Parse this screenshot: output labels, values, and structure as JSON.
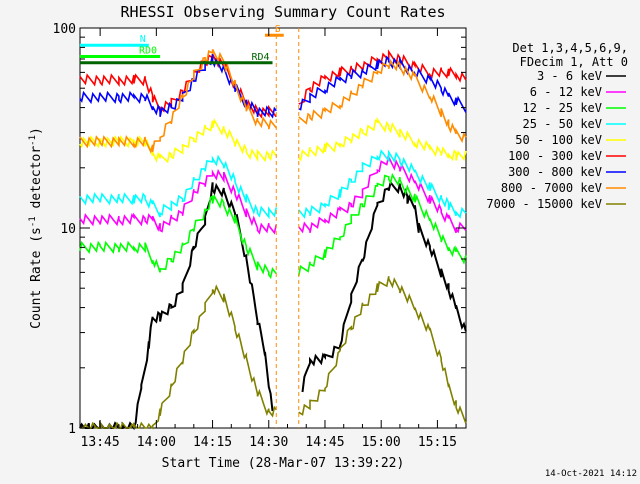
{
  "chart_data": {
    "type": "line",
    "title": "RHESSI Observing Summary Count Rates",
    "xlabel": "Start Time (28-Mar-07 13:39:22)",
    "ylabel_main": "Count Rate (s",
    "ylabel_sup1": "-1",
    "ylabel_mid": " detector",
    "ylabel_sup2": "-1",
    "ylabel_end": ")",
    "y_scale": "log",
    "ylim": [
      1,
      100
    ],
    "xlim_minutes": [
      -5.37,
      97.63
    ],
    "x_ticks": [
      {
        "label": "13:45",
        "minutes": 0
      },
      {
        "label": "14:00",
        "minutes": 15
      },
      {
        "label": "14:15",
        "minutes": 30
      },
      {
        "label": "14:30",
        "minutes": 45
      },
      {
        "label": "14:45",
        "minutes": 60
      },
      {
        "label": "15:00",
        "minutes": 75
      },
      {
        "label": "15:15",
        "minutes": 90
      }
    ],
    "y_ticks": [
      {
        "label": "1",
        "value": 1
      },
      {
        "label": "10",
        "value": 10
      },
      {
        "label": "100",
        "value": 100
      }
    ],
    "legend_header": [
      "Det 1,3,4,5,6,9,",
      "FDecim 1, Att 0"
    ],
    "legend_placement": "right",
    "grid": false,
    "gaps_minutes": [
      [
        47,
        53
      ]
    ],
    "series": [
      {
        "name": "3 - 6 keV",
        "color": "#000000",
        "values_minutes": [
          -5.4,
          -3,
          0,
          3,
          6,
          9,
          11,
          13,
          14,
          16,
          19,
          22,
          25,
          28,
          30,
          33,
          36,
          39,
          42,
          44,
          46,
          54,
          56,
          60,
          64,
          67,
          70,
          74,
          77,
          80,
          82,
          84,
          85,
          88,
          91,
          93,
          95,
          97.6
        ],
        "values": [
          1,
          1,
          1,
          1,
          1,
          1,
          1.6,
          2.6,
          3.5,
          3.6,
          4,
          5,
          8,
          11,
          16,
          15,
          12,
          7,
          3.5,
          2.4,
          1.2,
          1.6,
          2.2,
          2.2,
          2.6,
          4.5,
          7,
          13,
          16,
          16,
          14,
          13,
          10,
          8,
          6,
          5,
          4,
          3
        ]
      },
      {
        "name": "6 - 12 keV",
        "color": "#ff00ff",
        "values_minutes": [
          -5.4,
          0,
          5,
          9,
          12,
          14,
          16,
          19,
          22,
          25,
          28,
          30,
          33,
          36,
          39,
          42,
          45,
          47,
          53,
          56,
          60,
          64,
          67,
          70,
          74,
          77,
          80,
          84,
          88,
          91,
          93,
          95,
          97.6
        ],
        "values": [
          11,
          11,
          11,
          11,
          11,
          11,
          10,
          11,
          12,
          15,
          17,
          19,
          18,
          15,
          12,
          10,
          10,
          10,
          10,
          10,
          11,
          12,
          13,
          15,
          20,
          22,
          20,
          17,
          14,
          12,
          11,
          10,
          10
        ]
      },
      {
        "name": "12 - 25 keV",
        "color": "#00ff00",
        "values_minutes": [
          -5.4,
          0,
          5,
          9,
          12,
          14,
          16,
          19,
          22,
          25,
          28,
          30,
          33,
          36,
          39,
          42,
          45,
          47,
          53,
          56,
          60,
          64,
          67,
          70,
          74,
          77,
          80,
          84,
          88,
          91,
          93,
          95,
          97.6
        ],
        "values": [
          8,
          8,
          8,
          8,
          8,
          7,
          6,
          7,
          8,
          10,
          12,
          14,
          13,
          11,
          8,
          6.5,
          6,
          6,
          6,
          6.5,
          7.5,
          9,
          11,
          13,
          16,
          18,
          17,
          14,
          11,
          9,
          8,
          7.5,
          7
        ]
      },
      {
        "name": "25 - 50 keV",
        "color": "#00ffff",
        "values_minutes": [
          -5.4,
          0,
          5,
          9,
          12,
          14,
          16,
          19,
          22,
          25,
          28,
          30,
          33,
          36,
          39,
          42,
          45,
          47,
          53,
          56,
          60,
          64,
          67,
          70,
          74,
          77,
          80,
          84,
          88,
          91,
          93,
          95,
          97.6
        ],
        "values": [
          14,
          14,
          14,
          14,
          14,
          13,
          12,
          13,
          14,
          17,
          20,
          22,
          21,
          17,
          14,
          12,
          12,
          12,
          12,
          12,
          13,
          15,
          17,
          20,
          23,
          23,
          22,
          19,
          16,
          14,
          13,
          12,
          12
        ]
      },
      {
        "name": "50 - 100 keV",
        "color": "#ffff00",
        "values_minutes": [
          -5.4,
          0,
          5,
          9,
          12,
          14,
          16,
          19,
          22,
          25,
          28,
          30,
          33,
          36,
          39,
          42,
          45,
          47,
          53,
          56,
          60,
          64,
          67,
          70,
          74,
          77,
          80,
          84,
          88,
          91,
          93,
          95,
          97.6
        ],
        "values": [
          27,
          27,
          27,
          27,
          27,
          24,
          22,
          23,
          25,
          28,
          31,
          33,
          31,
          27,
          24,
          23,
          23,
          23,
          23,
          24,
          25,
          26,
          28,
          30,
          33,
          32,
          30,
          27,
          25,
          24,
          23,
          23,
          23
        ]
      },
      {
        "name": "100 - 300 keV",
        "color": "#ff0000",
        "values_minutes": [
          -5.4,
          0,
          5,
          9,
          12,
          14,
          16,
          19,
          22,
          25,
          28,
          30,
          33,
          36,
          39,
          42,
          45,
          47,
          53,
          56,
          60,
          64,
          67,
          70,
          74,
          77,
          80,
          84,
          88,
          91,
          93,
          95,
          97.6
        ],
        "values": [
          55,
          55,
          55,
          55,
          55,
          45,
          40,
          42,
          48,
          58,
          68,
          72,
          65,
          52,
          42,
          38,
          38,
          38,
          40,
          50,
          56,
          60,
          62,
          64,
          70,
          72,
          70,
          64,
          60,
          60,
          60,
          58,
          55
        ]
      },
      {
        "name": "300 - 800 keV",
        "color": "#0000ff",
        "values_minutes": [
          -5.4,
          0,
          5,
          9,
          12,
          14,
          16,
          19,
          22,
          25,
          28,
          30,
          33,
          36,
          39,
          42,
          45,
          47,
          53,
          56,
          60,
          64,
          67,
          70,
          74,
          77,
          80,
          84,
          88,
          91,
          93,
          95,
          97.6
        ],
        "values": [
          45,
          45,
          45,
          45,
          45,
          40,
          38,
          40,
          45,
          55,
          65,
          70,
          62,
          50,
          42,
          38,
          38,
          38,
          40,
          45,
          50,
          55,
          58,
          60,
          66,
          68,
          66,
          60,
          55,
          50,
          46,
          43,
          40
        ]
      },
      {
        "name": "800 - 7000 keV",
        "color": "#ff8c00",
        "values_minutes": [
          -5.4,
          0,
          5,
          9,
          12,
          14,
          16,
          19,
          22,
          25,
          28,
          30,
          33,
          36,
          39,
          42,
          45,
          47,
          53,
          56,
          60,
          64,
          67,
          70,
          74,
          77,
          80,
          84,
          88,
          91,
          93,
          95,
          97.6
        ],
        "values": [
          27,
          27,
          27,
          27,
          27,
          25,
          28,
          35,
          45,
          58,
          70,
          75,
          68,
          52,
          40,
          34,
          33,
          33,
          34,
          36,
          38,
          42,
          46,
          52,
          60,
          66,
          64,
          56,
          46,
          38,
          33,
          30,
          28
        ]
      },
      {
        "name": "7000 - 15000 keV",
        "color": "#808000",
        "values_minutes": [
          -5.4,
          0,
          5,
          9,
          12,
          14,
          16,
          19,
          22,
          25,
          28,
          30,
          33,
          36,
          39,
          42,
          45,
          47,
          53,
          56,
          60,
          64,
          67,
          70,
          74,
          77,
          80,
          84,
          88,
          91,
          93,
          95,
          97.6
        ],
        "values": [
          1,
          1,
          1,
          1,
          1,
          1,
          1.2,
          1.6,
          2.2,
          3,
          4,
          5,
          4.5,
          3.2,
          2.2,
          1.5,
          1.2,
          1.2,
          1.2,
          1.3,
          1.6,
          2.4,
          3.2,
          4,
          5,
          5.5,
          5,
          4,
          3,
          2.2,
          1.6,
          1.3,
          1.1
        ]
      }
    ],
    "annotations": [
      {
        "label": "N",
        "color": "#00ffff",
        "type": "bar",
        "x0": -5.4,
        "x1": 13,
        "y": 82
      },
      {
        "label": "RD0",
        "color": "#00ff00",
        "type": "bar",
        "x0": -5.4,
        "x1": 16,
        "y": 72
      },
      {
        "label": "RD4",
        "color": "#006400",
        "type": "bar",
        "x0": -5.4,
        "x1": 46,
        "y": 67
      },
      {
        "label": "S",
        "color": "#ff8c00",
        "type": "bar",
        "x0": 44,
        "x1": 49,
        "y": 92
      }
    ]
  },
  "footer_date": "14-Oct-2021 14:12",
  "colors": {
    "background": "#f4f4f4",
    "plot_background": "#ffffff",
    "axis": "#000000"
  }
}
